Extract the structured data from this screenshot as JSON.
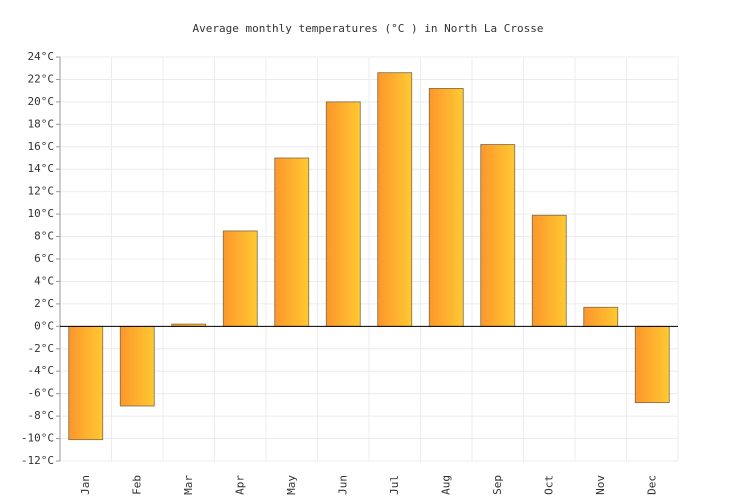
{
  "chart_data": {
    "type": "bar",
    "title": "Average monthly temperatures (°C ) in North La Crosse",
    "categories": [
      "Jan",
      "Feb",
      "Mar",
      "Apr",
      "May",
      "Jun",
      "Jul",
      "Aug",
      "Sep",
      "Oct",
      "Nov",
      "Dec"
    ],
    "values": [
      -10.1,
      -7.1,
      0.2,
      8.5,
      15.0,
      20.0,
      22.6,
      21.2,
      16.2,
      9.9,
      1.7,
      -6.8
    ],
    "colors": [
      "#fd962c",
      "#ffc931"
    ],
    "ylim": [
      -12,
      24
    ],
    "yticks": [
      {
        "value": -12,
        "label": "-12°C"
      },
      {
        "value": -10,
        "label": "-10°C"
      },
      {
        "value": -8,
        "label": "-8°C"
      },
      {
        "value": -6,
        "label": "-6°C"
      },
      {
        "value": -4,
        "label": "-4°C"
      },
      {
        "value": -2,
        "label": "-2°C"
      },
      {
        "value": 0,
        "label": "0°C"
      },
      {
        "value": 2,
        "label": "2°C"
      },
      {
        "value": 4,
        "label": "4°C"
      },
      {
        "value": 6,
        "label": "6°C"
      },
      {
        "value": 8,
        "label": "8°C"
      },
      {
        "value": 10,
        "label": "10°C"
      },
      {
        "value": 12,
        "label": "12°C"
      },
      {
        "value": 14,
        "label": "14°C"
      },
      {
        "value": 16,
        "label": "16°C"
      },
      {
        "value": 18,
        "label": "18°C"
      },
      {
        "value": 20,
        "label": "20°C"
      },
      {
        "value": 22,
        "label": "22°C"
      },
      {
        "value": 24,
        "label": "24°C"
      }
    ],
    "grid": true
  }
}
